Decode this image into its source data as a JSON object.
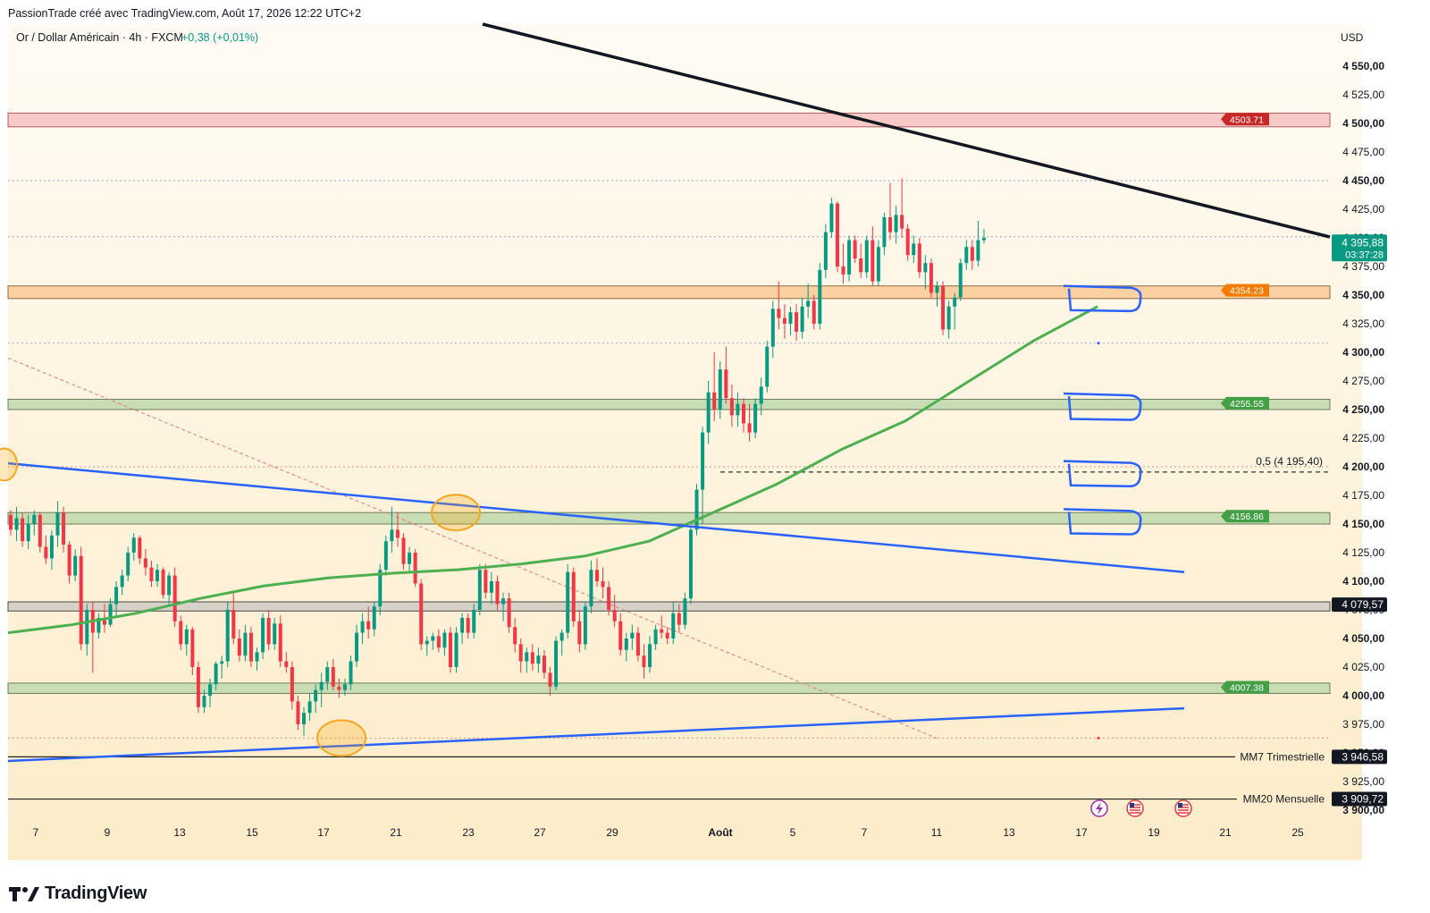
{
  "header": {
    "credit": "PassionTrade créé avec TradingView.com, Août 17, 2026 12:22 UTC+2"
  },
  "symbol": {
    "name": "Or / Dollar Américain · 4h · FXCM",
    "change": "+0,38 (+0,01%)"
  },
  "currency": "USD",
  "brand": "TradingView",
  "colors": {
    "up": "#089981",
    "down": "#f23645",
    "ma": "#4caf50",
    "trend_blue": "#2962ff",
    "resistance": "#f7c9c7",
    "orange_zone": "#fdd0a2",
    "support": "#c8ddb4",
    "background_gradient": "#fef3df"
  },
  "chart_data": {
    "type": "candlestick",
    "title": "Or / Dollar Américain · 4h · FXCM",
    "ylim": [
      3893,
      4575
    ],
    "y_ticks": [
      "3 900,00",
      "3 925,00",
      "3 950,00",
      "3 975,00",
      "4 000,00",
      "4 025,00",
      "4 050,00",
      "4 075,00",
      "4 100,00",
      "4 125,00",
      "4 150,00",
      "4 175,00",
      "4 200,00",
      "4 225,00",
      "4 250,00",
      "4 275,00",
      "4 300,00",
      "4 325,00",
      "4 350,00",
      "4 375,00",
      "4 400,00",
      "4 425,00",
      "4 450,00",
      "4 475,00",
      "4 500,00",
      "4 525,00",
      "4 550,00"
    ],
    "y_tick_values": [
      3900,
      3925,
      3950,
      3975,
      4000,
      4025,
      4050,
      4075,
      4100,
      4125,
      4150,
      4175,
      4200,
      4225,
      4250,
      4275,
      4300,
      4325,
      4350,
      4375,
      4400,
      4425,
      4450,
      4475,
      4500,
      4525,
      4550
    ],
    "x_ticks": [
      "7",
      "9",
      "13",
      "15",
      "17",
      "21",
      "23",
      "27",
      "29",
      "Août",
      "5",
      "7",
      "11",
      "13",
      "17",
      "19",
      "21",
      "25"
    ],
    "last_price": "4 395,88",
    "countdown": "03:37:28",
    "price_lines": [
      {
        "label": "4503.71",
        "value": 4503.71
      },
      {
        "label": "4354.23",
        "value": 4354.23
      },
      {
        "label": "4255.55",
        "value": 4255.55
      },
      {
        "label": "4156.86",
        "value": 4156.86
      },
      {
        "label": "4007.38",
        "value": 4007.38
      }
    ],
    "fib_label": "0,5 (4 195,40)",
    "fib_value": 4195.4,
    "level_4079": "4 079,57",
    "ma7": {
      "name": "MM7 Trimestrielle",
      "value": "3 946,58"
    },
    "ma20": {
      "name": "MM20 Mensuelle",
      "value": "3 909,72"
    },
    "series": [
      {
        "name": "candles",
        "ohlc": [
          [
            4158,
            4162,
            4140,
            4145
          ],
          [
            4145,
            4165,
            4135,
            4155
          ],
          [
            4155,
            4160,
            4130,
            4135
          ],
          [
            4135,
            4158,
            4128,
            4150
          ],
          [
            4150,
            4162,
            4140,
            4158
          ],
          [
            4158,
            4160,
            4125,
            4130
          ],
          [
            4130,
            4140,
            4115,
            4120
          ],
          [
            4120,
            4145,
            4110,
            4140
          ],
          [
            4140,
            4170,
            4130,
            4160
          ],
          [
            4160,
            4165,
            4125,
            4132
          ],
          [
            4132,
            4135,
            4098,
            4105
          ],
          [
            4105,
            4128,
            4100,
            4122
          ],
          [
            4122,
            4130,
            4040,
            4045
          ],
          [
            4045,
            4080,
            4035,
            4075
          ],
          [
            4075,
            4082,
            4020,
            4055
          ],
          [
            4055,
            4072,
            4050,
            4068
          ],
          [
            4068,
            4080,
            4055,
            4062
          ],
          [
            4062,
            4085,
            4060,
            4080
          ],
          [
            4080,
            4100,
            4070,
            4095
          ],
          [
            4095,
            4110,
            4088,
            4105
          ],
          [
            4105,
            4130,
            4100,
            4125
          ],
          [
            4125,
            4142,
            4118,
            4138
          ],
          [
            4138,
            4140,
            4115,
            4120
          ],
          [
            4120,
            4128,
            4105,
            4112
          ],
          [
            4112,
            4118,
            4095,
            4100
          ],
          [
            4100,
            4115,
            4095,
            4110
          ],
          [
            4110,
            4112,
            4085,
            4088
          ],
          [
            4088,
            4108,
            4080,
            4105
          ],
          [
            4105,
            4112,
            4060,
            4065
          ],
          [
            4065,
            4070,
            4040,
            4045
          ],
          [
            4045,
            4062,
            4035,
            4058
          ],
          [
            4058,
            4060,
            4018,
            4025
          ],
          [
            4025,
            4030,
            3985,
            3990
          ],
          [
            3990,
            4005,
            3985,
            4000
          ],
          [
            4000,
            4015,
            3990,
            4010
          ],
          [
            4010,
            4030,
            4005,
            4028
          ],
          [
            4028,
            4035,
            4015,
            4030
          ],
          [
            4030,
            4082,
            4025,
            4075
          ],
          [
            4075,
            4090,
            4045,
            4050
          ],
          [
            4050,
            4058,
            4030,
            4035
          ],
          [
            4035,
            4062,
            4030,
            4055
          ],
          [
            4055,
            4060,
            4025,
            4030
          ],
          [
            4030,
            4042,
            4022,
            4038
          ],
          [
            4038,
            4072,
            4032,
            4068
          ],
          [
            4068,
            4075,
            4040,
            4045
          ],
          [
            4045,
            4068,
            4040,
            4063
          ],
          [
            4063,
            4070,
            4025,
            4030
          ],
          [
            4030,
            4038,
            4020,
            4025
          ],
          [
            4025,
            4030,
            3988,
            3995
          ],
          [
            3995,
            4000,
            3970,
            3975
          ],
          [
            3975,
            3990,
            3965,
            3985
          ],
          [
            3985,
            4002,
            3978,
            3995
          ],
          [
            3995,
            4010,
            3985,
            4005
          ],
          [
            4005,
            4020,
            3990,
            4012
          ],
          [
            4012,
            4030,
            4005,
            4025
          ],
          [
            4025,
            4032,
            4005,
            4008
          ],
          [
            4008,
            4015,
            3998,
            4005
          ],
          [
            4005,
            4015,
            4000,
            4010
          ],
          [
            4010,
            4035,
            4005,
            4030
          ],
          [
            4030,
            4062,
            4025,
            4055
          ],
          [
            4055,
            4072,
            4045,
            4065
          ],
          [
            4065,
            4078,
            4050,
            4058
          ],
          [
            4058,
            4082,
            4052,
            4078
          ],
          [
            4078,
            4115,
            4070,
            4110
          ],
          [
            4110,
            4140,
            4105,
            4135
          ],
          [
            4135,
            4165,
            4125,
            4145
          ],
          [
            4145,
            4160,
            4130,
            4138
          ],
          [
            4138,
            4142,
            4110,
            4115
          ],
          [
            4115,
            4130,
            4108,
            4125
          ],
          [
            4125,
            4128,
            4095,
            4098
          ],
          [
            4098,
            4102,
            4040,
            4045
          ],
          [
            4045,
            4052,
            4035,
            4048
          ],
          [
            4048,
            4055,
            4040,
            4052
          ],
          [
            4052,
            4058,
            4038,
            4042
          ],
          [
            4042,
            4058,
            4035,
            4055
          ],
          [
            4055,
            4060,
            4020,
            4025
          ],
          [
            4025,
            4060,
            4020,
            4055
          ],
          [
            4055,
            4072,
            4045,
            4068
          ],
          [
            4068,
            4072,
            4050,
            4055
          ],
          [
            4055,
            4080,
            4050,
            4075
          ],
          [
            4075,
            4115,
            4070,
            4110
          ],
          [
            4110,
            4115,
            4085,
            4090
          ],
          [
            4090,
            4108,
            4080,
            4100
          ],
          [
            4100,
            4105,
            4075,
            4080
          ],
          [
            4080,
            4090,
            4065,
            4085
          ],
          [
            4085,
            4090,
            4055,
            4060
          ],
          [
            4060,
            4068,
            4038,
            4045
          ],
          [
            4045,
            4050,
            4020,
            4030
          ],
          [
            4030,
            4042,
            4020,
            4038
          ],
          [
            4038,
            4045,
            4022,
            4028
          ],
          [
            4028,
            4042,
            4020,
            4035
          ],
          [
            4035,
            4040,
            4015,
            4020
          ],
          [
            4020,
            4025,
            4000,
            4008
          ],
          [
            4008,
            4052,
            4005,
            4048
          ],
          [
            4048,
            4058,
            4035,
            4055
          ],
          [
            4055,
            4115,
            4050,
            4108
          ],
          [
            4108,
            4112,
            4060,
            4065
          ],
          [
            4065,
            4075,
            4038,
            4045
          ],
          [
            4045,
            4082,
            4040,
            4078
          ],
          [
            4078,
            4118,
            4072,
            4110
          ],
          [
            4110,
            4120,
            4095,
            4100
          ],
          [
            4100,
            4112,
            4085,
            4095
          ],
          [
            4095,
            4100,
            4070,
            4075
          ],
          [
            4075,
            4088,
            4060,
            4065
          ],
          [
            4065,
            4072,
            4035,
            4040
          ],
          [
            4040,
            4055,
            4030,
            4050
          ],
          [
            4050,
            4062,
            4040,
            4055
          ],
          [
            4055,
            4060,
            4030,
            4035
          ],
          [
            4035,
            4045,
            4015,
            4025
          ],
          [
            4025,
            4052,
            4020,
            4045
          ],
          [
            4045,
            4062,
            4040,
            4058
          ],
          [
            4058,
            4070,
            4050,
            4055
          ],
          [
            4055,
            4060,
            4045,
            4050
          ],
          [
            4050,
            4082,
            4045,
            4072
          ],
          [
            4072,
            4080,
            4055,
            4062
          ],
          [
            4062,
            4090,
            4058,
            4085
          ],
          [
            4085,
            4148,
            4080,
            4145
          ],
          [
            4145,
            4185,
            4140,
            4180
          ],
          [
            4180,
            4235,
            4150,
            4230
          ],
          [
            4230,
            4275,
            4220,
            4265
          ],
          [
            4265,
            4300,
            4240,
            4250
          ],
          [
            4250,
            4292,
            4242,
            4285
          ],
          [
            4285,
            4305,
            4255,
            4260
          ],
          [
            4260,
            4272,
            4235,
            4245
          ],
          [
            4245,
            4265,
            4235,
            4255
          ],
          [
            4255,
            4260,
            4230,
            4238
          ],
          [
            4238,
            4255,
            4222,
            4230
          ],
          [
            4230,
            4260,
            4225,
            4255
          ],
          [
            4255,
            4278,
            4245,
            4270
          ],
          [
            4270,
            4310,
            4265,
            4305
          ],
          [
            4305,
            4345,
            4295,
            4338
          ],
          [
            4338,
            4362,
            4320,
            4330
          ],
          [
            4330,
            4342,
            4312,
            4325
          ],
          [
            4325,
            4340,
            4315,
            4335
          ],
          [
            4335,
            4342,
            4310,
            4318
          ],
          [
            4318,
            4348,
            4312,
            4340
          ],
          [
            4340,
            4360,
            4330,
            4345
          ],
          [
            4345,
            4350,
            4320,
            4325
          ],
          [
            4325,
            4378,
            4320,
            4372
          ],
          [
            4372,
            4412,
            4365,
            4405
          ],
          [
            4405,
            4435,
            4400,
            4430
          ],
          [
            4430,
            4432,
            4370,
            4375
          ],
          [
            4375,
            4395,
            4360,
            4368
          ],
          [
            4368,
            4402,
            4362,
            4398
          ],
          [
            4398,
            4402,
            4378,
            4382
          ],
          [
            4382,
            4395,
            4365,
            4370
          ],
          [
            4370,
            4402,
            4365,
            4398
          ],
          [
            4398,
            4410,
            4358,
            4362
          ],
          [
            4362,
            4398,
            4358,
            4392
          ],
          [
            4392,
            4422,
            4385,
            4418
          ],
          [
            4418,
            4448,
            4398,
            4405
          ],
          [
            4405,
            4428,
            4395,
            4420
          ],
          [
            4420,
            4452,
            4400,
            4408
          ],
          [
            4408,
            4412,
            4380,
            4385
          ],
          [
            4385,
            4402,
            4378,
            4395
          ],
          [
            4395,
            4400,
            4365,
            4370
          ],
          [
            4370,
            4385,
            4355,
            4378
          ],
          [
            4378,
            4382,
            4348,
            4352
          ],
          [
            4352,
            4362,
            4340,
            4358
          ],
          [
            4358,
            4362,
            4315,
            4320
          ],
          [
            4320,
            4345,
            4312,
            4340
          ],
          [
            4340,
            4352,
            4320,
            4348
          ],
          [
            4348,
            4382,
            4345,
            4378
          ],
          [
            4378,
            4398,
            4372,
            4392
          ],
          [
            4392,
            4398,
            4372,
            4380
          ],
          [
            4380,
            4415,
            4375,
            4398
          ],
          [
            4398,
            4408,
            4395,
            4400
          ]
        ],
        "values": []
      },
      {
        "name": "MM",
        "values": [
          4055,
          4062,
          4072,
          4085,
          4096,
          4103,
          4107,
          4110,
          4115,
          4122,
          4135,
          4160,
          4185,
          4215,
          4240,
          4275,
          4310,
          4340
        ]
      }
    ]
  }
}
